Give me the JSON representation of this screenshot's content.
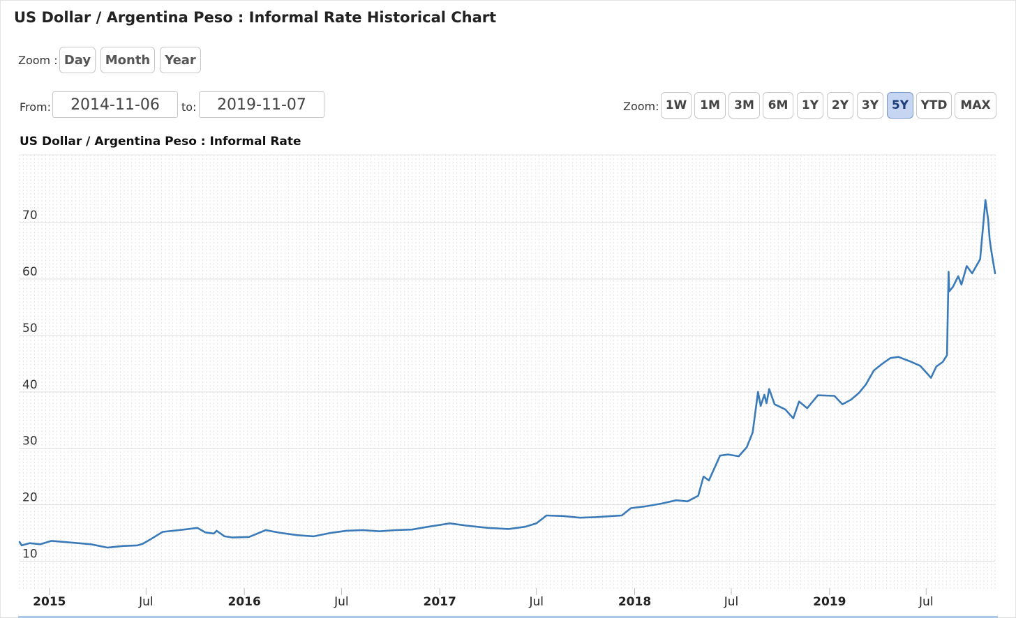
{
  "header": {
    "title": "US Dollar / Argentina Peso : Informal Rate Historical Chart"
  },
  "zoom_top": {
    "label": "Zoom :",
    "buttons": [
      "Day",
      "Month",
      "Year"
    ]
  },
  "range": {
    "from_label": "From:",
    "from_value": "2014-11-06",
    "to_label": "to:",
    "to_value": "2019-11-07"
  },
  "zoom_right": {
    "label": "Zoom:",
    "buttons": [
      "1W",
      "1M",
      "3M",
      "6M",
      "1Y",
      "2Y",
      "3Y",
      "5Y",
      "YTD",
      "MAX"
    ],
    "active": "5Y"
  },
  "chart_data": {
    "type": "line",
    "title": "US Dollar / Argentina Peso : Informal Rate",
    "xlabel": "",
    "ylabel": "",
    "x_range": [
      "2014-11-06",
      "2019-11-07"
    ],
    "ylim": [
      5,
      82
    ],
    "yticks": [
      10,
      20,
      30,
      40,
      50,
      60,
      70
    ],
    "xticks": [
      {
        "date": "2015-01-01",
        "label": "2015"
      },
      {
        "date": "2015-07-01",
        "label": "Jul"
      },
      {
        "date": "2016-01-01",
        "label": "2016"
      },
      {
        "date": "2016-07-01",
        "label": "Jul"
      },
      {
        "date": "2017-01-01",
        "label": "2017"
      },
      {
        "date": "2017-07-01",
        "label": "Jul"
      },
      {
        "date": "2018-01-01",
        "label": "2018"
      },
      {
        "date": "2018-07-01",
        "label": "Jul"
      },
      {
        "date": "2019-01-01",
        "label": "2019"
      },
      {
        "date": "2019-07-01",
        "label": "Jul"
      }
    ],
    "grid": true,
    "line_color": "#3a7ab8",
    "series": [
      {
        "x": [
          "2014-11-06",
          "2014-11-10",
          "2014-11-25",
          "2014-12-15",
          "2015-01-05",
          "2015-02-10",
          "2015-03-20",
          "2015-04-20",
          "2015-05-20",
          "2015-06-15",
          "2015-06-25",
          "2015-07-08",
          "2015-08-01",
          "2015-09-10",
          "2015-10-05",
          "2015-10-20",
          "2015-11-05",
          "2015-11-10",
          "2015-11-25",
          "2015-12-10",
          "2016-01-10",
          "2016-02-10",
          "2016-03-10",
          "2016-04-10",
          "2016-05-10",
          "2016-06-10",
          "2016-07-10",
          "2016-08-10",
          "2016-09-10",
          "2016-10-10",
          "2016-11-10",
          "2016-12-10",
          "2017-01-20",
          "2017-02-20",
          "2017-04-01",
          "2017-05-10",
          "2017-06-10",
          "2017-07-01",
          "2017-07-20",
          "2017-08-20",
          "2017-09-20",
          "2017-10-20",
          "2017-11-20",
          "2017-12-08",
          "2017-12-25",
          "2018-01-20",
          "2018-02-20",
          "2018-03-20",
          "2018-04-10",
          "2018-04-30",
          "2018-05-10",
          "2018-05-20",
          "2018-06-10",
          "2018-06-25",
          "2018-07-15",
          "2018-07-30",
          "2018-08-10",
          "2018-08-20",
          "2018-08-25",
          "2018-09-01",
          "2018-09-05",
          "2018-09-10",
          "2018-09-20",
          "2018-10-10",
          "2018-10-25",
          "2018-11-05",
          "2018-11-20",
          "2018-12-10",
          "2019-01-10",
          "2019-01-25",
          "2019-02-10",
          "2019-02-25",
          "2019-03-10",
          "2019-03-25",
          "2019-04-10",
          "2019-04-25",
          "2019-05-10",
          "2019-06-01",
          "2019-06-20",
          "2019-07-10",
          "2019-07-20",
          "2019-08-01",
          "2019-08-09",
          "2019-08-12",
          "2019-08-13",
          "2019-08-20",
          "2019-08-30",
          "2019-09-05",
          "2019-09-15",
          "2019-09-25",
          "2019-10-10",
          "2019-10-20",
          "2019-10-25",
          "2019-10-28",
          "2019-10-31",
          "2019-11-07"
        ],
        "y": [
          13.4,
          12.8,
          13.2,
          13.0,
          13.6,
          13.3,
          13.0,
          12.4,
          12.7,
          12.8,
          13.1,
          13.8,
          15.2,
          15.6,
          15.9,
          15.1,
          14.9,
          15.4,
          14.4,
          14.2,
          14.3,
          15.5,
          15.0,
          14.6,
          14.4,
          15.0,
          15.4,
          15.5,
          15.3,
          15.5,
          15.6,
          16.1,
          16.7,
          16.3,
          15.9,
          15.7,
          16.1,
          16.7,
          18.1,
          18.0,
          17.7,
          17.8,
          18.0,
          18.1,
          19.4,
          19.7,
          20.2,
          20.8,
          20.6,
          21.6,
          25.0,
          24.3,
          28.7,
          28.9,
          28.6,
          30.2,
          32.8,
          40.0,
          37.5,
          39.5,
          38.0,
          40.5,
          37.8,
          36.9,
          35.3,
          38.3,
          37.1,
          39.4,
          39.3,
          37.8,
          38.6,
          39.8,
          41.3,
          43.8,
          45.0,
          46.0,
          46.2,
          45.4,
          44.6,
          42.5,
          44.5,
          45.3,
          46.5,
          61.3,
          57.8,
          58.6,
          60.5,
          59.0,
          62.3,
          61.0,
          63.5,
          74.0,
          70.5,
          67.0,
          65.0,
          61.0
        ]
      }
    ]
  }
}
